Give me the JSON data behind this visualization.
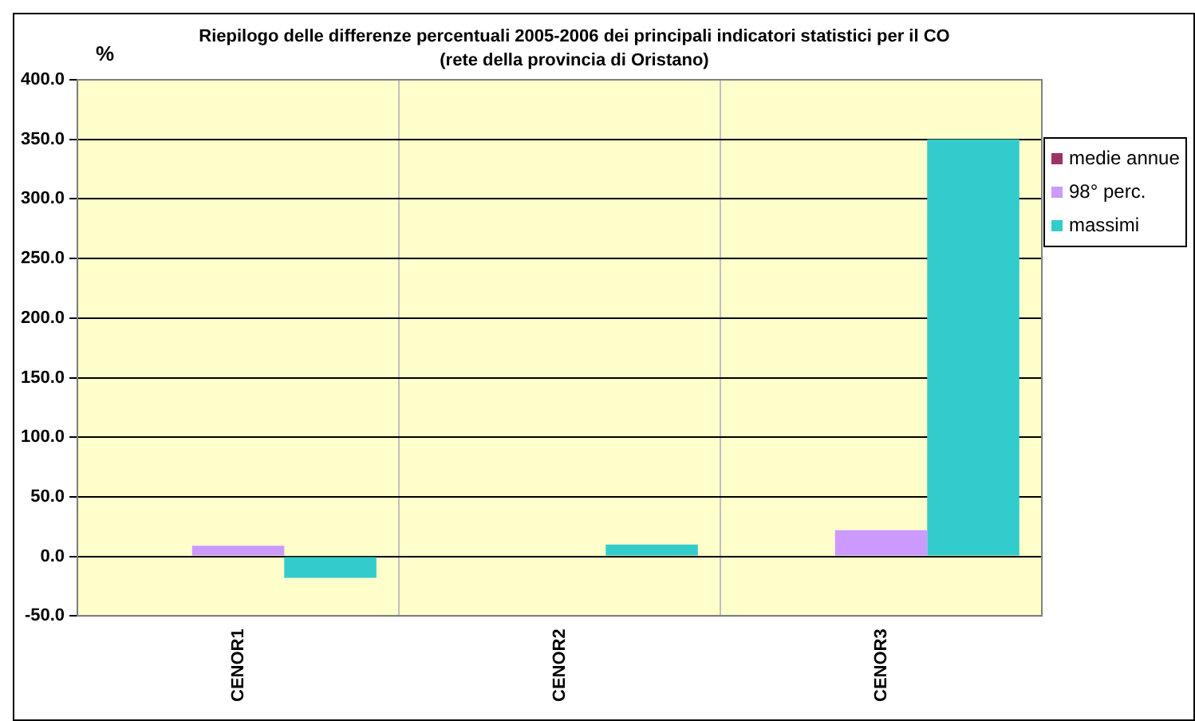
{
  "chart_data": {
    "type": "bar",
    "title": "Riepilogo delle differenze percentuali 2005-2006 dei principali indicatori statistici per il CO\n(rete della provincia di Oristano)",
    "ylabel": "%",
    "categories": [
      "CENOR1",
      "CENOR2",
      "CENOR3"
    ],
    "series": [
      {
        "name": "medie annue",
        "color": "#993366",
        "values": [
          0,
          0,
          0
        ]
      },
      {
        "name": "98° perc.",
        "color": "#cc99ff",
        "values": [
          9,
          0,
          22
        ]
      },
      {
        "name": "massimi",
        "color": "#33cccc",
        "values": [
          -18,
          10,
          350
        ]
      }
    ],
    "ylim": [
      -50,
      400
    ],
    "yticks": [
      {
        "value": -50,
        "label": "-50.0"
      },
      {
        "value": 0,
        "label": "0.0"
      },
      {
        "value": 50,
        "label": "50.0"
      },
      {
        "value": 100,
        "label": "100.0"
      },
      {
        "value": 150,
        "label": "150.0"
      },
      {
        "value": 200,
        "label": "200.0"
      },
      {
        "value": 250,
        "label": "250.0"
      },
      {
        "value": 300,
        "label": "300.0"
      },
      {
        "value": 350,
        "label": "350.0"
      },
      {
        "value": 400,
        "label": "400.0"
      }
    ],
    "grid": true,
    "legend": "top right"
  }
}
